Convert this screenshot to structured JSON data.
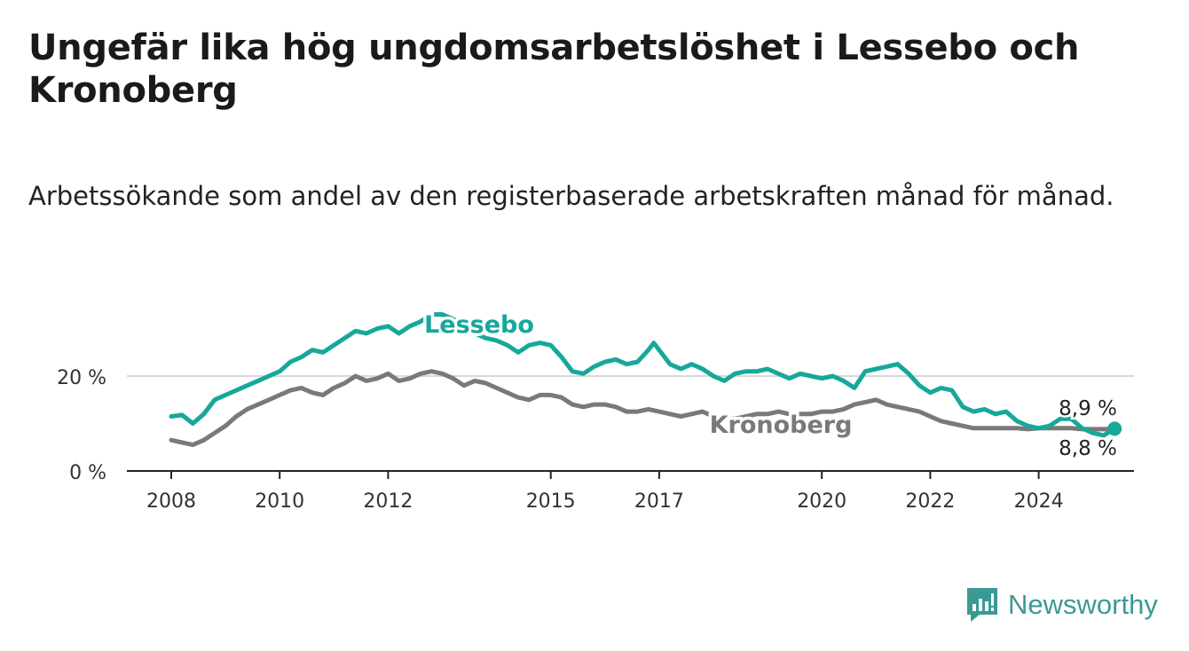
{
  "header": {
    "title": "Ungefär lika hög ungdomsarbetslöshet i Lessebo och Kronoberg",
    "subtitle": "Arbetssökande som andel av den registerbaserade arbetskraften månad för månad."
  },
  "brand": {
    "name": "Newsworthy",
    "color": "#3a9a93"
  },
  "chart_data": {
    "type": "line",
    "x_ticks": [
      2008,
      2010,
      2012,
      2015,
      2017,
      2020,
      2022,
      2024
    ],
    "y_ticks": [
      0,
      20
    ],
    "y_tick_labels": [
      "0 %",
      "20 %"
    ],
    "xlim": [
      2007.5,
      2025.5
    ],
    "ylim": [
      0,
      35
    ],
    "grid": "horizontal",
    "series": [
      {
        "name": "Lessebo",
        "color": "#16a89a",
        "end_label": "8,9 %",
        "points": [
          [
            2008.0,
            11.5
          ],
          [
            2008.2,
            11.8
          ],
          [
            2008.4,
            10.0
          ],
          [
            2008.6,
            12.0
          ],
          [
            2008.8,
            15.0
          ],
          [
            2009.0,
            16.0
          ],
          [
            2009.2,
            17.0
          ],
          [
            2009.4,
            18.0
          ],
          [
            2009.6,
            19.0
          ],
          [
            2009.8,
            20.0
          ],
          [
            2010.0,
            21.0
          ],
          [
            2010.2,
            23.0
          ],
          [
            2010.4,
            24.0
          ],
          [
            2010.6,
            25.5
          ],
          [
            2010.8,
            25.0
          ],
          [
            2011.0,
            26.5
          ],
          [
            2011.2,
            28.0
          ],
          [
            2011.4,
            29.5
          ],
          [
            2011.6,
            29.0
          ],
          [
            2011.8,
            30.0
          ],
          [
            2012.0,
            30.5
          ],
          [
            2012.2,
            29.0
          ],
          [
            2012.4,
            30.5
          ],
          [
            2012.6,
            31.5
          ],
          [
            2012.8,
            33.0
          ],
          [
            2013.0,
            33.0
          ],
          [
            2013.2,
            32.0
          ],
          [
            2013.4,
            30.5
          ],
          [
            2013.6,
            29.0
          ],
          [
            2013.8,
            28.0
          ],
          [
            2014.0,
            27.5
          ],
          [
            2014.2,
            26.5
          ],
          [
            2014.4,
            25.0
          ],
          [
            2014.6,
            26.5
          ],
          [
            2014.8,
            27.0
          ],
          [
            2015.0,
            26.5
          ],
          [
            2015.2,
            24.0
          ],
          [
            2015.4,
            21.0
          ],
          [
            2015.6,
            20.5
          ],
          [
            2015.8,
            22.0
          ],
          [
            2016.0,
            23.0
          ],
          [
            2016.2,
            23.5
          ],
          [
            2016.4,
            22.5
          ],
          [
            2016.6,
            23.0
          ],
          [
            2016.8,
            25.5
          ],
          [
            2016.9,
            27.0
          ],
          [
            2017.0,
            25.5
          ],
          [
            2017.2,
            22.5
          ],
          [
            2017.4,
            21.5
          ],
          [
            2017.6,
            22.5
          ],
          [
            2017.8,
            21.5
          ],
          [
            2018.0,
            20.0
          ],
          [
            2018.2,
            19.0
          ],
          [
            2018.4,
            20.5
          ],
          [
            2018.6,
            21.0
          ],
          [
            2018.8,
            21.0
          ],
          [
            2019.0,
            21.5
          ],
          [
            2019.2,
            20.5
          ],
          [
            2019.4,
            19.5
          ],
          [
            2019.6,
            20.5
          ],
          [
            2019.8,
            20.0
          ],
          [
            2020.0,
            19.5
          ],
          [
            2020.2,
            20.0
          ],
          [
            2020.4,
            19.0
          ],
          [
            2020.6,
            17.5
          ],
          [
            2020.8,
            21.0
          ],
          [
            2021.0,
            21.5
          ],
          [
            2021.2,
            22.0
          ],
          [
            2021.4,
            22.5
          ],
          [
            2021.6,
            20.5
          ],
          [
            2021.8,
            18.0
          ],
          [
            2022.0,
            16.5
          ],
          [
            2022.2,
            17.5
          ],
          [
            2022.4,
            17.0
          ],
          [
            2022.6,
            13.5
          ],
          [
            2022.8,
            12.5
          ],
          [
            2023.0,
            13.0
          ],
          [
            2023.2,
            12.0
          ],
          [
            2023.4,
            12.5
          ],
          [
            2023.6,
            10.5
          ],
          [
            2023.8,
            9.5
          ],
          [
            2024.0,
            9.0
          ],
          [
            2024.2,
            9.5
          ],
          [
            2024.4,
            11.0
          ],
          [
            2024.6,
            11.0
          ],
          [
            2024.8,
            9.0
          ],
          [
            2025.0,
            8.0
          ],
          [
            2025.2,
            7.5
          ],
          [
            2025.4,
            8.9
          ]
        ]
      },
      {
        "name": "Kronoberg",
        "color": "#7a787b",
        "end_label": "8,8 %",
        "points": [
          [
            2008.0,
            6.5
          ],
          [
            2008.2,
            6.0
          ],
          [
            2008.4,
            5.5
          ],
          [
            2008.6,
            6.5
          ],
          [
            2008.8,
            8.0
          ],
          [
            2009.0,
            9.5
          ],
          [
            2009.2,
            11.5
          ],
          [
            2009.4,
            13.0
          ],
          [
            2009.6,
            14.0
          ],
          [
            2009.8,
            15.0
          ],
          [
            2010.0,
            16.0
          ],
          [
            2010.2,
            17.0
          ],
          [
            2010.4,
            17.5
          ],
          [
            2010.6,
            16.5
          ],
          [
            2010.8,
            16.0
          ],
          [
            2011.0,
            17.5
          ],
          [
            2011.2,
            18.5
          ],
          [
            2011.4,
            20.0
          ],
          [
            2011.6,
            19.0
          ],
          [
            2011.8,
            19.5
          ],
          [
            2012.0,
            20.5
          ],
          [
            2012.2,
            19.0
          ],
          [
            2012.4,
            19.5
          ],
          [
            2012.6,
            20.5
          ],
          [
            2012.8,
            21.0
          ],
          [
            2013.0,
            20.5
          ],
          [
            2013.2,
            19.5
          ],
          [
            2013.4,
            18.0
          ],
          [
            2013.6,
            19.0
          ],
          [
            2013.8,
            18.5
          ],
          [
            2014.0,
            17.5
          ],
          [
            2014.2,
            16.5
          ],
          [
            2014.4,
            15.5
          ],
          [
            2014.6,
            15.0
          ],
          [
            2014.8,
            16.0
          ],
          [
            2015.0,
            16.0
          ],
          [
            2015.2,
            15.5
          ],
          [
            2015.4,
            14.0
          ],
          [
            2015.6,
            13.5
          ],
          [
            2015.8,
            14.0
          ],
          [
            2016.0,
            14.0
          ],
          [
            2016.2,
            13.5
          ],
          [
            2016.4,
            12.5
          ],
          [
            2016.6,
            12.5
          ],
          [
            2016.8,
            13.0
          ],
          [
            2017.0,
            12.5
          ],
          [
            2017.2,
            12.0
          ],
          [
            2017.4,
            11.5
          ],
          [
            2017.6,
            12.0
          ],
          [
            2017.8,
            12.5
          ],
          [
            2018.0,
            11.5
          ],
          [
            2018.2,
            11.0
          ],
          [
            2018.4,
            11.0
          ],
          [
            2018.6,
            11.5
          ],
          [
            2018.8,
            12.0
          ],
          [
            2019.0,
            12.0
          ],
          [
            2019.2,
            12.5
          ],
          [
            2019.4,
            12.0
          ],
          [
            2019.6,
            12.0
          ],
          [
            2019.8,
            12.0
          ],
          [
            2020.0,
            12.5
          ],
          [
            2020.2,
            12.5
          ],
          [
            2020.4,
            13.0
          ],
          [
            2020.6,
            14.0
          ],
          [
            2020.8,
            14.5
          ],
          [
            2021.0,
            15.0
          ],
          [
            2021.2,
            14.0
          ],
          [
            2021.4,
            13.5
          ],
          [
            2021.6,
            13.0
          ],
          [
            2021.8,
            12.5
          ],
          [
            2022.0,
            11.5
          ],
          [
            2022.2,
            10.5
          ],
          [
            2022.4,
            10.0
          ],
          [
            2022.6,
            9.5
          ],
          [
            2022.8,
            9.0
          ],
          [
            2023.0,
            9.0
          ],
          [
            2023.2,
            9.0
          ],
          [
            2023.4,
            9.0
          ],
          [
            2023.6,
            9.0
          ],
          [
            2023.8,
            8.8
          ],
          [
            2024.0,
            9.0
          ],
          [
            2024.2,
            9.0
          ],
          [
            2024.4,
            9.0
          ],
          [
            2024.6,
            9.0
          ],
          [
            2024.8,
            8.8
          ],
          [
            2025.0,
            8.8
          ],
          [
            2025.2,
            8.8
          ],
          [
            2025.4,
            8.8
          ]
        ]
      }
    ]
  }
}
